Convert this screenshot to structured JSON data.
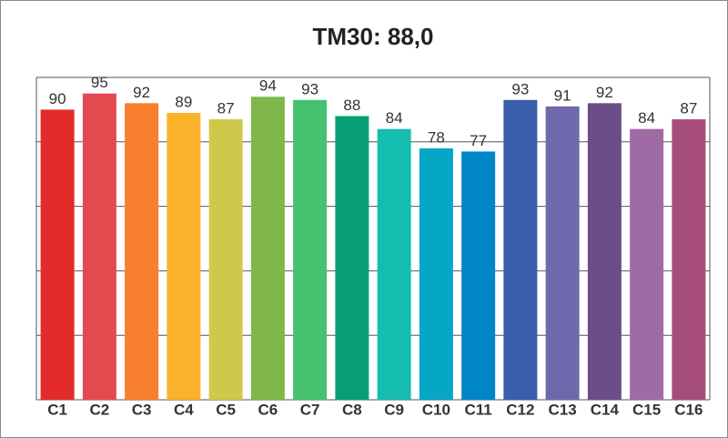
{
  "chart_data": {
    "type": "bar",
    "title": "TM30: 88,0",
    "categories": [
      "C1",
      "C2",
      "C3",
      "C4",
      "C5",
      "C6",
      "C7",
      "C8",
      "C9",
      "C10",
      "C11",
      "C12",
      "C13",
      "C14",
      "C15",
      "C16"
    ],
    "values": [
      90,
      95,
      92,
      89,
      87,
      94,
      93,
      88,
      84,
      78,
      77,
      93,
      91,
      92,
      84,
      87
    ],
    "colors": [
      "#e32b2b",
      "#e34a4f",
      "#f77f2e",
      "#fbb12a",
      "#cfc84a",
      "#80b74a",
      "#45c170",
      "#089f77",
      "#15bcb0",
      "#06a6c6",
      "#0085c6",
      "#3b5eaa",
      "#6e69ac",
      "#6b4d88",
      "#a06aa5",
      "#a74d7e"
    ],
    "ylim": [
      0,
      100
    ],
    "yticks": [
      0,
      20,
      40,
      60,
      80,
      100
    ],
    "grid": true
  }
}
